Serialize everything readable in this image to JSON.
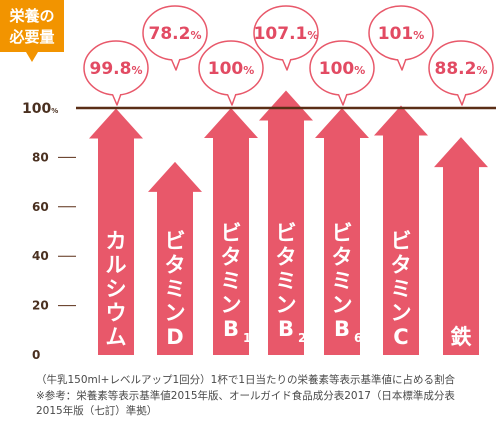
{
  "badge": "栄養の必要量",
  "footnotes": [
    "（牛乳150ml+レベルアップ1回分）1杯で1日当たりの栄養素等表示基準値に占める割合",
    "※参考：栄養素等表示基準値2015年版、オールガイド食品成分表2017（日本標準成分表",
    "2015年版（七訂）準拠）"
  ],
  "colors": {
    "bar": "#e8586a",
    "bubble_text": "#e24b63",
    "line": "#5a2e16",
    "axis_text": "#4a3020"
  },
  "chart_data": {
    "type": "bar",
    "ylim": [
      0,
      110
    ],
    "yticks": [
      0,
      20,
      40,
      60,
      80
    ],
    "reference_value": 100,
    "reference_label": "100",
    "reference_unit": "%",
    "categories": [
      "カルシウム",
      "ビタミンD",
      "ビタミンB1",
      "ビタミンB2",
      "ビタミンB6",
      "ビタミンC",
      "鉄"
    ],
    "bar_labels": [
      {
        "text": "カルシウム",
        "sub": ""
      },
      {
        "text": "ビタミンD",
        "sub": ""
      },
      {
        "text": "ビタミンB",
        "sub": "1"
      },
      {
        "text": "ビタミンB",
        "sub": "2"
      },
      {
        "text": "ビタミンB",
        "sub": "6"
      },
      {
        "text": "ビタミンC",
        "sub": ""
      },
      {
        "text": "鉄",
        "sub": ""
      }
    ],
    "values": [
      99.8,
      78.2,
      100,
      107.1,
      100,
      101,
      88.2
    ],
    "value_labels": [
      {
        "num": "99.8",
        "unit": "%"
      },
      {
        "num": "78.2",
        "unit": "%"
      },
      {
        "num": "100",
        "unit": "%"
      },
      {
        "num": "107.1",
        "unit": "%"
      },
      {
        "num": "100",
        "unit": "%"
      },
      {
        "num": "101",
        "unit": "%"
      },
      {
        "num": "88.2",
        "unit": "%"
      }
    ]
  }
}
